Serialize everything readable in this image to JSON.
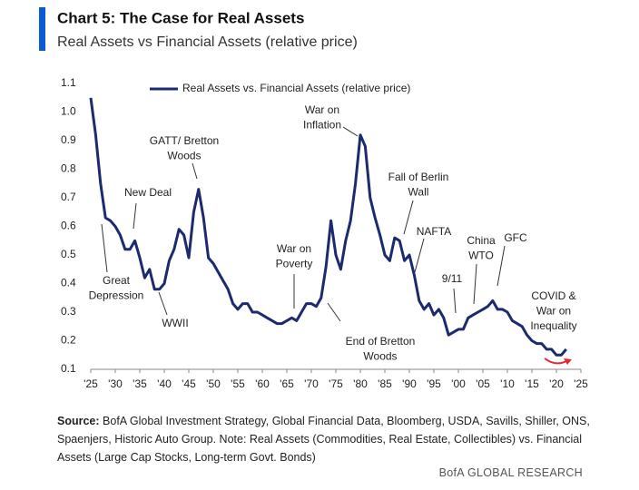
{
  "chart_data": {
    "type": "line",
    "title": "Chart 5: The Case for Real Assets",
    "subtitle": "Real Assets vs Financial Assets (relative price)",
    "x": [
      1925,
      1926,
      1927,
      1928,
      1929,
      1930,
      1931,
      1932,
      1933,
      1934,
      1935,
      1936,
      1937,
      1938,
      1939,
      1940,
      1941,
      1942,
      1943,
      1944,
      1945,
      1946,
      1947,
      1948,
      1949,
      1950,
      1951,
      1952,
      1953,
      1954,
      1955,
      1956,
      1957,
      1958,
      1959,
      1960,
      1961,
      1962,
      1963,
      1964,
      1965,
      1966,
      1967,
      1968,
      1969,
      1970,
      1971,
      1972,
      1973,
      1974,
      1975,
      1976,
      1977,
      1978,
      1979,
      1980,
      1981,
      1982,
      1983,
      1984,
      1985,
      1986,
      1987,
      1988,
      1989,
      1990,
      1991,
      1992,
      1993,
      1994,
      1995,
      1996,
      1997,
      1998,
      1999,
      2000,
      2001,
      2002,
      2003,
      2004,
      2005,
      2006,
      2007,
      2008,
      2009,
      2010,
      2011,
      2012,
      2013,
      2014,
      2015,
      2016,
      2017,
      2018,
      2019,
      2020,
      2021,
      2022
    ],
    "series": [
      {
        "name": "Real Assets vs. Financial Assets (relative price)",
        "color": "#1c2a6e",
        "values": [
          1.05,
          0.92,
          0.75,
          0.63,
          0.62,
          0.6,
          0.57,
          0.52,
          0.52,
          0.55,
          0.49,
          0.42,
          0.45,
          0.38,
          0.38,
          0.4,
          0.48,
          0.52,
          0.59,
          0.57,
          0.49,
          0.65,
          0.73,
          0.63,
          0.49,
          0.47,
          0.44,
          0.41,
          0.38,
          0.33,
          0.31,
          0.33,
          0.33,
          0.3,
          0.3,
          0.29,
          0.28,
          0.27,
          0.26,
          0.26,
          0.27,
          0.28,
          0.27,
          0.3,
          0.33,
          0.33,
          0.32,
          0.35,
          0.46,
          0.62,
          0.5,
          0.45,
          0.55,
          0.62,
          0.75,
          0.92,
          0.88,
          0.7,
          0.63,
          0.57,
          0.5,
          0.48,
          0.56,
          0.55,
          0.48,
          0.5,
          0.43,
          0.34,
          0.31,
          0.33,
          0.29,
          0.31,
          0.28,
          0.22,
          0.23,
          0.24,
          0.24,
          0.28,
          0.29,
          0.3,
          0.31,
          0.32,
          0.34,
          0.31,
          0.31,
          0.3,
          0.27,
          0.26,
          0.25,
          0.22,
          0.2,
          0.19,
          0.19,
          0.17,
          0.17,
          0.15,
          0.15,
          0.17
        ]
      }
    ],
    "xlim": [
      1925,
      2025
    ],
    "xticks": [
      {
        "value": 1925,
        "label": "'25"
      },
      {
        "value": 1930,
        "label": "'30"
      },
      {
        "value": 1935,
        "label": "'35"
      },
      {
        "value": 1940,
        "label": "'40"
      },
      {
        "value": 1945,
        "label": "'45"
      },
      {
        "value": 1950,
        "label": "'50"
      },
      {
        "value": 1955,
        "label": "'55"
      },
      {
        "value": 1960,
        "label": "'60"
      },
      {
        "value": 1965,
        "label": "'65"
      },
      {
        "value": 1970,
        "label": "'70"
      },
      {
        "value": 1975,
        "label": "'75"
      },
      {
        "value": 1980,
        "label": "'80"
      },
      {
        "value": 1985,
        "label": "'85"
      },
      {
        "value": 1990,
        "label": "'90"
      },
      {
        "value": 1995,
        "label": "'95"
      },
      {
        "value": 2000,
        "label": "'00"
      },
      {
        "value": 2005,
        "label": "'05"
      },
      {
        "value": 2010,
        "label": "'10"
      },
      {
        "value": 2015,
        "label": "'15"
      },
      {
        "value": 2020,
        "label": "'20"
      },
      {
        "value": 2025,
        "label": "'25"
      }
    ],
    "ylim": [
      0.1,
      1.1
    ],
    "yticks": [
      0.1,
      0.2,
      0.3,
      0.4,
      0.5,
      0.6,
      0.7,
      0.8,
      0.9,
      {
        "value": 1,
        "label": "1.0"
      },
      1.1
    ],
    "grid": false,
    "legend": "top",
    "annotations": [
      {
        "lines": [
          "Great",
          "Depression"
        ]
      },
      {
        "lines": [
          "New Deal"
        ]
      },
      {
        "lines": [
          "GATT/ Bretton",
          "Woods"
        ]
      },
      {
        "lines": [
          "WWII"
        ]
      },
      {
        "lines": [
          "War on",
          "Poverty"
        ]
      },
      {
        "lines": [
          "War on",
          "Inflation"
        ]
      },
      {
        "lines": [
          "End of Bretton",
          "Woods"
        ]
      },
      {
        "lines": [
          "Fall of Berlin",
          "Wall"
        ]
      },
      {
        "lines": [
          "NAFTA"
        ]
      },
      {
        "lines": [
          "9/11"
        ]
      },
      {
        "lines": [
          "China",
          "WTO"
        ]
      },
      {
        "lines": [
          "GFC"
        ]
      },
      {
        "lines": [
          "COVID &",
          "War on",
          "Inequality"
        ],
        "color": "#e8262b"
      }
    ],
    "source_label": "Source:",
    "source": "BofA Global Investment Strategy, Global Financial Data, Bloomberg, USDA, Savills, Shiller, ONS, Spaenjers, Historic Auto Group. Note: Real Assets (Commodities, Real Estate, Collectibles) vs. Financial Assets (Large Cap Stocks, Long-term Govt. Bonds)",
    "footer": "BofA GLOBAL RESEARCH"
  }
}
